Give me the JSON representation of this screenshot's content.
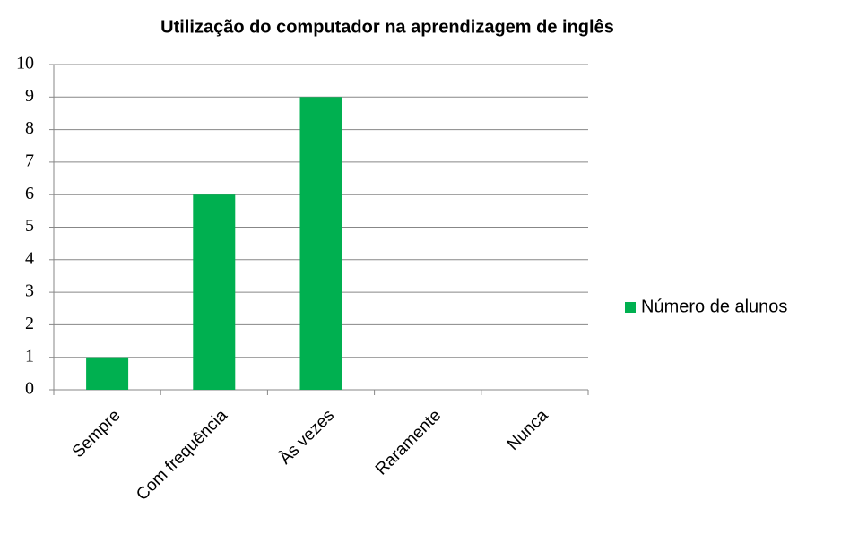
{
  "chart_data": {
    "type": "bar",
    "title": "Utilização do computador na aprendizagem de inglês",
    "categories": [
      "Sempre",
      "Com frequência",
      "Às vezes",
      "Raramente",
      "Nunca"
    ],
    "series": [
      {
        "name": "Número de alunos",
        "color": "#00b050",
        "values": [
          1,
          6,
          9,
          0,
          0
        ]
      }
    ],
    "ylim": [
      0,
      10
    ],
    "yticks": [
      0,
      1,
      2,
      3,
      4,
      5,
      6,
      7,
      8,
      9,
      10
    ],
    "grid": true,
    "legend": "right"
  }
}
